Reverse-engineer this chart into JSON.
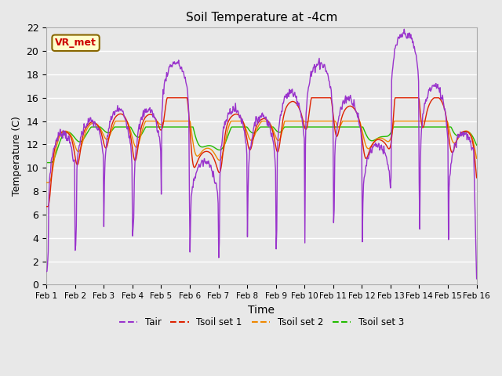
{
  "title": "Soil Temperature at -4cm",
  "xlabel": "Time",
  "ylabel": "Temperature (C)",
  "ylim": [
    0,
    22
  ],
  "background_color": "#e8e8e8",
  "plot_bg_color": "#e8e8e8",
  "grid_color": "white",
  "colors": {
    "Tair": "#9933cc",
    "Tsoil set 1": "#dd2200",
    "Tsoil set 2": "#ee8800",
    "Tsoil set 3": "#22bb00"
  },
  "legend_labels": [
    "Tair",
    "Tsoil set 1",
    "Tsoil set 2",
    "Tsoil set 3"
  ],
  "xtick_labels": [
    "Feb 1",
    "Feb 2",
    "Feb 3",
    "Feb 4",
    "Feb 5",
    "Feb 6",
    "Feb 7",
    "Feb 8",
    "Feb 9",
    "Feb 10",
    "Feb 11",
    "Feb 12",
    "Feb 13",
    "Feb 14",
    "Feb 15",
    "Feb 16"
  ],
  "annotation_text": "VR_met",
  "annotation_color": "#cc0000",
  "annotation_bg": "#ffffcc",
  "annotation_border": "#886600",
  "yticks": [
    0,
    2,
    4,
    6,
    8,
    10,
    12,
    14,
    16,
    18,
    20,
    22
  ]
}
